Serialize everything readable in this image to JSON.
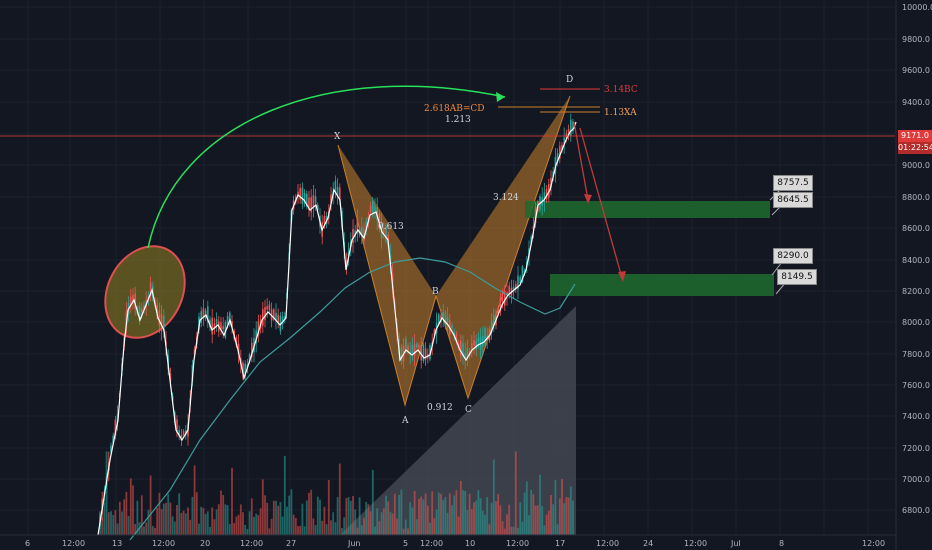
{
  "y_axis_labels": [
    "10000.0",
    "9800.0",
    "9600.0",
    "9400.0",
    "9200.0",
    "9000.0",
    "8800.0",
    "8600.0",
    "8400.0",
    "8200.0",
    "8000.0",
    "7800.0",
    "7600.0",
    "7400.0",
    "7200.0",
    "7000.0",
    "6800.0"
  ],
  "x_axis_labels": [
    "6",
    "12:00",
    "13",
    "12:00",
    "20",
    "12:00",
    "27",
    "Jun",
    "5",
    "12:00",
    "10",
    "12:00",
    "17",
    "12:00",
    "24",
    "12:00",
    "Jul",
    "8",
    "12:00"
  ],
  "current_price": "9171.0",
  "countdown": "01:22:54",
  "pattern": {
    "points": [
      "X",
      "A",
      "B",
      "C",
      "D"
    ],
    "ratios": {
      "xb": "0.613",
      "ac": "0.912",
      "bd": "3.124",
      "ab_cd_main": "2.618AB=CD",
      "ab_cd_sub": "1.213"
    },
    "d_levels": {
      "bc": "3.14BC",
      "xa": "1.13XA"
    }
  },
  "targets": {
    "zone1_high": "8757.5",
    "zone1_low": "8645.5",
    "zone2_high": "8290.0",
    "zone2_low": "8149.5"
  },
  "colors": {
    "background": "#131722",
    "up": "#26a69a",
    "down": "#ef5350",
    "pattern_fill": "#c9802a",
    "zone_fill": "#1e6b2e",
    "arc": "#29e05a"
  }
}
